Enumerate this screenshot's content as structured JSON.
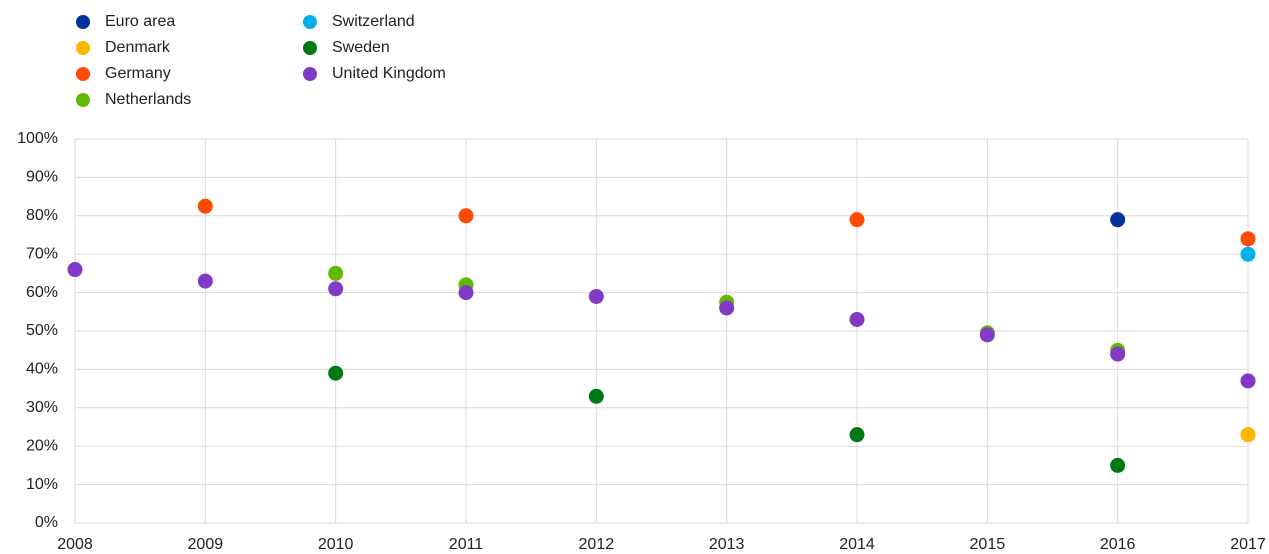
{
  "chart_data": {
    "type": "scatter",
    "x": [
      2008,
      2009,
      2010,
      2011,
      2012,
      2013,
      2014,
      2015,
      2016,
      2017
    ],
    "xlim": [
      2008,
      2017
    ],
    "xticks": [
      2008,
      2009,
      2010,
      2011,
      2012,
      2013,
      2014,
      2015,
      2016,
      2017
    ],
    "ylim": [
      0,
      100
    ],
    "yticks": [
      {
        "value": 0,
        "label": "0%"
      },
      {
        "value": 10,
        "label": "10%"
      },
      {
        "value": 20,
        "label": "20%"
      },
      {
        "value": 30,
        "label": "30%"
      },
      {
        "value": 40,
        "label": "40%"
      },
      {
        "value": 50,
        "label": "50%"
      },
      {
        "value": 60,
        "label": "60%"
      },
      {
        "value": 70,
        "label": "70%"
      },
      {
        "value": 80,
        "label": "80%"
      },
      {
        "value": 90,
        "label": "90%"
      },
      {
        "value": 100,
        "label": "100%"
      }
    ],
    "grid": true,
    "legend": "top-left",
    "series": [
      {
        "name": "Euro area",
        "color": "#003299",
        "values": [
          null,
          null,
          null,
          null,
          null,
          null,
          null,
          null,
          79,
          null
        ]
      },
      {
        "name": "Denmark",
        "color": "#ffb400",
        "values": [
          null,
          null,
          null,
          null,
          null,
          null,
          null,
          null,
          null,
          23
        ]
      },
      {
        "name": "Germany",
        "color": "#ff4b00",
        "values": [
          null,
          82.5,
          null,
          80,
          null,
          null,
          79,
          null,
          null,
          74
        ]
      },
      {
        "name": "Netherlands",
        "color": "#65b800",
        "values": [
          null,
          null,
          65,
          62,
          null,
          57.5,
          null,
          49.5,
          45,
          null
        ]
      },
      {
        "name": "Switzerland",
        "color": "#00b1ea",
        "values": [
          null,
          null,
          null,
          null,
          null,
          null,
          null,
          null,
          null,
          70
        ]
      },
      {
        "name": "Sweden",
        "color": "#007816",
        "values": [
          null,
          null,
          39,
          null,
          33,
          null,
          23,
          null,
          15,
          null
        ]
      },
      {
        "name": "United Kingdom",
        "color": "#8139c6",
        "values": [
          66,
          63,
          61,
          60,
          59,
          56,
          53,
          49,
          44,
          37
        ]
      }
    ]
  }
}
